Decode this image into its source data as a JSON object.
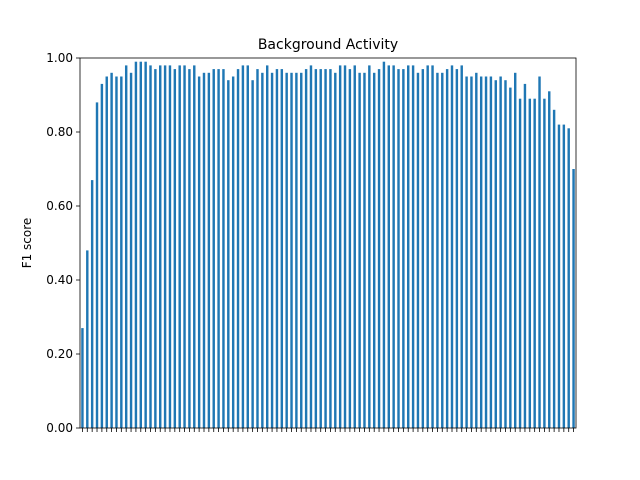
{
  "chart_data": {
    "type": "bar",
    "title": "Background Activity",
    "xlabel": "",
    "ylabel": "F1 score",
    "ylim": [
      0,
      1.0
    ],
    "yticks": [
      "0.00",
      "0.20",
      "0.40",
      "0.60",
      "0.80",
      "1.00"
    ],
    "color": "#1f77b4",
    "grid": false,
    "values": [
      0.27,
      0.48,
      0.67,
      0.88,
      0.93,
      0.95,
      0.96,
      0.95,
      0.95,
      0.98,
      0.96,
      0.99,
      0.99,
      0.99,
      0.98,
      0.97,
      0.98,
      0.98,
      0.98,
      0.97,
      0.98,
      0.98,
      0.97,
      0.98,
      0.95,
      0.96,
      0.96,
      0.97,
      0.97,
      0.97,
      0.94,
      0.95,
      0.97,
      0.98,
      0.98,
      0.94,
      0.97,
      0.96,
      0.98,
      0.96,
      0.97,
      0.97,
      0.96,
      0.96,
      0.96,
      0.96,
      0.97,
      0.98,
      0.97,
      0.97,
      0.97,
      0.97,
      0.96,
      0.98,
      0.98,
      0.97,
      0.98,
      0.96,
      0.96,
      0.98,
      0.96,
      0.97,
      0.99,
      0.98,
      0.98,
      0.97,
      0.97,
      0.98,
      0.98,
      0.96,
      0.97,
      0.98,
      0.98,
      0.96,
      0.96,
      0.97,
      0.98,
      0.97,
      0.98,
      0.95,
      0.95,
      0.96,
      0.95,
      0.95,
      0.95,
      0.94,
      0.95,
      0.94,
      0.92,
      0.96,
      0.89,
      0.93,
      0.89,
      0.89,
      0.95,
      0.89,
      0.91,
      0.86,
      0.82,
      0.82,
      0.81,
      0.7
    ]
  }
}
